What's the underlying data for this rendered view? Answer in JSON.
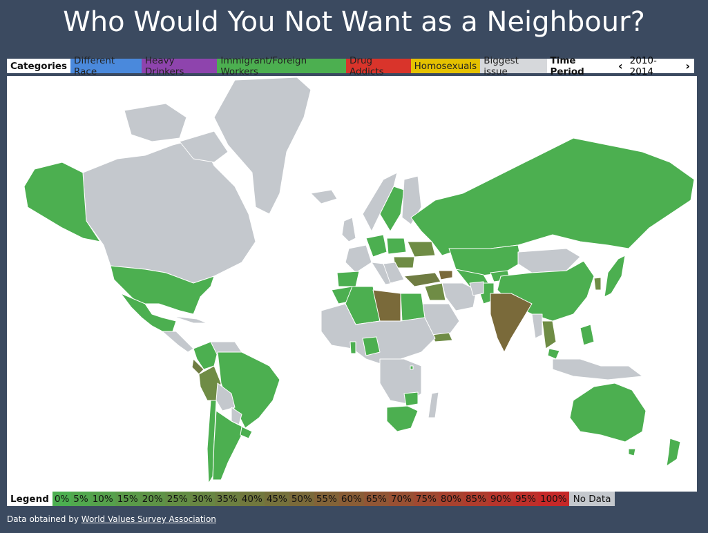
{
  "title": "Who Would You Not Want as a Neighbour?",
  "categories_label": "Categories",
  "categories": [
    {
      "label": "Different Race",
      "color": "#4a89dc"
    },
    {
      "label": "Heavy Drinkers",
      "color": "#8e44ad"
    },
    {
      "label": "Immigrant/Foreign Workers",
      "color": "#4caf50"
    },
    {
      "label": "Drug Addicts",
      "color": "#d9342b"
    },
    {
      "label": "Homosexuals",
      "color": "#e5c100"
    },
    {
      "label": "Biggest issue",
      "color": "#d6d8db"
    }
  ],
  "time_period": {
    "label": "Time Period",
    "value": "2010-2014",
    "prev_icon": "chevron-left-icon",
    "next_icon": "chevron-right-icon"
  },
  "legend": {
    "label": "Legend",
    "steps": [
      "0%",
      "5%",
      "10%",
      "15%",
      "20%",
      "25%",
      "30%",
      "35%",
      "40%",
      "45%",
      "50%",
      "55%",
      "60%",
      "65%",
      "70%",
      "75%",
      "80%",
      "85%",
      "90%",
      "95%",
      "100%"
    ],
    "no_data": "No Data",
    "colors": {
      "low": "#4caf50",
      "mid": "#7a6a3a",
      "high": "#c62828",
      "no_data": "#c4c8cd"
    }
  },
  "footer": {
    "prefix": "Data obtained by ",
    "link_text": "World Values Survey Association"
  }
}
